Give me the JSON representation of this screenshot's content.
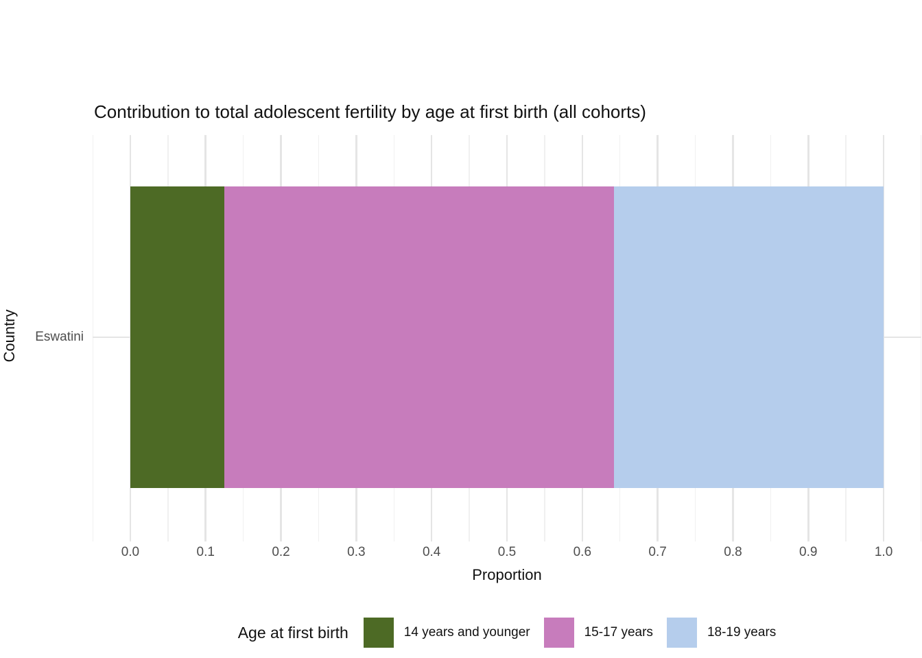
{
  "chart_data": {
    "type": "bar",
    "orientation": "horizontal",
    "stacked": true,
    "title": "Contribution to total adolescent fertility by age at first birth (all cohorts)",
    "xlabel": "Proportion",
    "ylabel": "Country",
    "categories": [
      "Eswatini"
    ],
    "series": [
      {
        "name": "14 years and younger",
        "values": [
          0.125
        ],
        "color": "#4d6a25"
      },
      {
        "name": "15-17 years",
        "values": [
          0.517
        ],
        "color": "#c77cbc"
      },
      {
        "name": "18-19 years",
        "values": [
          0.358
        ],
        "color": "#b5cdec"
      }
    ],
    "xlim": [
      -0.05,
      1.05
    ],
    "x_major_ticks": [
      0.0,
      0.1,
      0.2,
      0.3,
      0.4,
      0.5,
      0.6,
      0.7,
      0.8,
      0.9,
      1.0
    ],
    "x_tick_labels": [
      "0.0",
      "0.1",
      "0.2",
      "0.3",
      "0.4",
      "0.5",
      "0.6",
      "0.7",
      "0.8",
      "0.9",
      "1.0"
    ],
    "x_minor_ticks": [
      -0.05,
      0.05,
      0.15,
      0.25,
      0.35,
      0.45,
      0.55,
      0.65,
      0.75,
      0.85,
      0.95,
      1.05
    ],
    "grid": "vertical major+minor, horizontal major at category center",
    "legend_title": "Age at first birth",
    "legend_position": "bottom"
  },
  "style_colors": {
    "background": "#ffffff",
    "grid_major": "#e5e5e5",
    "grid_minor": "#f0f0f0",
    "tick_text": "#4d4d4d",
    "title_text": "#111111"
  }
}
